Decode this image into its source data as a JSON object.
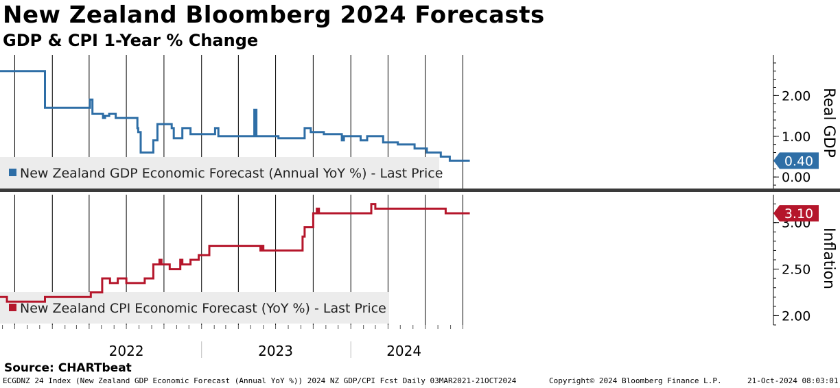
{
  "header": {
    "title": "New Zealand Bloomberg 2024 Forecasts",
    "subtitle": "GDP & CPI 1-Year % Change"
  },
  "source": "Source: CHARTbeat",
  "footer": {
    "left": "ECGDNZ 24 Index (New Zealand GDP Economic Forecast (Annual YoY %)) 2024 NZ GDP/CPI Fcst  Daily 03MAR2021-21OCT2024",
    "middle": "Copyright© 2024 Bloomberg Finance L.P.",
    "right": "21-Oct-2024 08:03:01"
  },
  "colors": {
    "gdp": "#2e6ea6",
    "cpi": "#b5162b",
    "grid": "#000000",
    "legend_bg": "#ececec",
    "divider": "#3a3a3a"
  },
  "chart_data": [
    {
      "type": "line",
      "panel": "top",
      "ylabel": "Real GDP",
      "ylim": [
        -0.3,
        3.0
      ],
      "yticks": [
        "0.00",
        "1.00",
        "2.00"
      ],
      "ytick_values": [
        0,
        1,
        2
      ],
      "legend": "New Zealand GDP Economic Forecast (Annual YoY %) - Last Price",
      "last_value": "0.40",
      "x_years": [
        "2022",
        "2023",
        "2024"
      ],
      "series": [
        {
          "name": "New Zealand GDP Economic Forecast (Annual YoY %) - Last Price",
          "x": [
            "2021-03-03",
            "2021-12-10",
            "2021-12-14",
            "2022-04-01",
            "2022-04-03",
            "2022-04-07",
            "2022-04-09",
            "2022-04-20",
            "2022-05-05",
            "2022-05-10",
            "2022-05-20",
            "2022-06-05",
            "2022-06-10",
            "2022-06-20",
            "2022-07-25",
            "2022-07-28",
            "2022-07-30",
            "2022-08-05",
            "2022-08-08",
            "2022-09-05",
            "2022-09-10",
            "2022-09-15",
            "2022-10-01",
            "2022-10-20",
            "2022-10-25",
            "2022-11-10",
            "2022-11-15",
            "2022-12-01",
            "2022-12-05",
            "2023-01-30",
            "2023-02-03",
            "2023-02-08",
            "2023-02-11",
            "2023-02-15",
            "2023-03-20",
            "2023-04-28",
            "2023-05-10",
            "2023-05-15",
            "2023-07-04",
            "2023-07-08",
            "2023-08-10",
            "2023-09-08",
            "2023-09-10",
            "2023-09-12",
            "2023-09-25",
            "2023-10-25",
            "2023-10-27",
            "2023-10-30",
            "2023-12-10",
            "2023-12-15",
            "2024-01-25",
            "2024-02-10",
            "2024-03-15",
            "2024-03-20",
            "2024-04-20",
            "2024-04-25",
            "2024-06-01",
            "2024-06-05",
            "2024-07-01",
            "2024-07-05",
            "2024-07-15",
            "2024-08-05",
            "2024-08-08",
            "2024-08-28",
            "2024-08-30",
            "2024-10-18"
          ],
          "y": [
            2.6,
            2.6,
            1.7,
            1.7,
            1.9,
            1.9,
            1.55,
            1.55,
            1.45,
            1.5,
            1.55,
            1.45,
            1.45,
            1.45,
            1.45,
            1.2,
            1.1,
            0.6,
            0.6,
            0.9,
            0.9,
            1.3,
            1.3,
            1.2,
            0.95,
            0.95,
            1.2,
            1.2,
            1.05,
            1.05,
            1.2,
            1.2,
            1.0,
            1.0,
            1.0,
            1.0,
            1.65,
            1.0,
            1.0,
            0.95,
            0.95,
            0.95,
            1.2,
            1.2,
            1.1,
            1.1,
            1.05,
            1.05,
            0.9,
            1.0,
            0.9,
            1.0,
            1.0,
            0.85,
            0.85,
            0.8,
            0.8,
            0.7,
            0.7,
            0.6,
            0.6,
            0.6,
            0.5,
            0.5,
            0.4,
            0.4
          ]
        }
      ]
    },
    {
      "type": "line",
      "panel": "bottom",
      "ylabel": "Inflation",
      "ylim": [
        1.9,
        3.3
      ],
      "yticks": [
        "2.00",
        "2.50",
        "3.00"
      ],
      "ytick_values": [
        2.0,
        2.5,
        3.0
      ],
      "legend": "New Zealand CPI Economic Forecast (YoY %) - Last Price",
      "last_value": "3.10",
      "x_years": [
        "2022",
        "2023",
        "2024"
      ],
      "series": [
        {
          "name": "New Zealand CPI Economic Forecast (YoY %) - Last Price",
          "x": [
            "2021-06-01",
            "2021-09-10",
            "2021-09-12",
            "2021-12-10",
            "2021-12-14",
            "2022-04-01",
            "2022-04-05",
            "2022-04-30",
            "2022-05-03",
            "2022-05-20",
            "2022-05-22",
            "2022-06-05",
            "2022-06-10",
            "2022-06-25",
            "2022-07-01",
            "2022-08-15",
            "2022-08-20",
            "2022-09-01",
            "2022-09-05",
            "2022-09-20",
            "2022-09-25",
            "2022-10-10",
            "2022-10-15",
            "2022-11-10",
            "2022-11-15",
            "2022-12-01",
            "2022-12-05",
            "2022-12-20",
            "2022-12-25",
            "2023-01-15",
            "2023-01-20",
            "2023-05-25",
            "2023-05-28",
            "2023-06-01",
            "2023-08-25",
            "2023-09-05",
            "2023-09-10",
            "2023-09-25",
            "2023-10-01",
            "2023-10-10",
            "2023-10-15",
            "2023-11-25",
            "2024-02-15",
            "2024-02-20",
            "2024-03-01",
            "2024-08-15",
            "2024-08-20",
            "2024-10-18"
          ],
          "y": [
            2.2,
            2.2,
            2.15,
            2.15,
            2.2,
            2.2,
            2.25,
            2.25,
            2.4,
            2.4,
            2.35,
            2.35,
            2.4,
            2.4,
            2.35,
            2.4,
            2.4,
            2.4,
            2.55,
            2.6,
            2.55,
            2.55,
            2.5,
            2.6,
            2.55,
            2.55,
            2.6,
            2.6,
            2.65,
            2.65,
            2.75,
            2.7,
            2.75,
            2.7,
            2.7,
            2.85,
            2.95,
            2.95,
            3.1,
            3.15,
            3.1,
            3.1,
            3.1,
            3.2,
            3.15,
            3.15,
            3.1,
            3.1
          ]
        }
      ]
    }
  ]
}
